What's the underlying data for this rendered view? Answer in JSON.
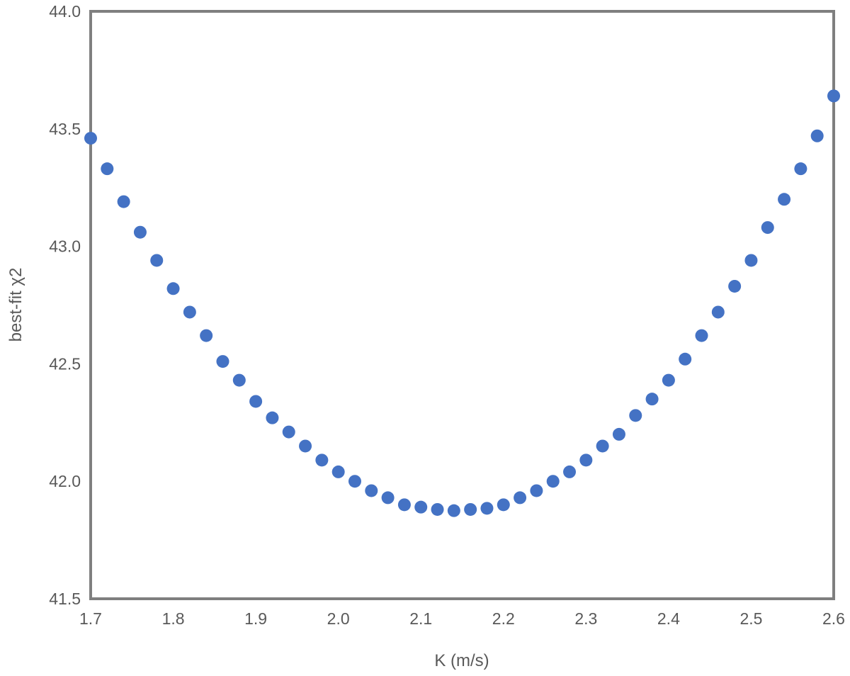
{
  "colors": {
    "marker": "#4472c4",
    "frame": "#7f7f7f",
    "text": "#595959"
  },
  "chart_data": {
    "type": "scatter",
    "title": "",
    "xlabel": "K (m/s)",
    "ylabel": "best-fit χ2",
    "xlim": [
      1.7,
      2.6
    ],
    "ylim": [
      41.5,
      44.0
    ],
    "x_ticks": [
      "1.7",
      "1.8",
      "1.9",
      "2.0",
      "2.1",
      "2.2",
      "2.3",
      "2.4",
      "2.5",
      "2.6"
    ],
    "y_ticks": [
      "41.5",
      "42.0",
      "42.5",
      "43.0",
      "43.5",
      "44.0"
    ],
    "grid": false,
    "legend": "none",
    "series": [
      {
        "x": [
          1.7,
          1.72,
          1.74,
          1.76,
          1.78,
          1.8,
          1.82,
          1.84,
          1.86,
          1.88,
          1.9,
          1.92,
          1.94,
          1.96,
          1.98,
          2.0,
          2.02,
          2.04,
          2.06,
          2.08,
          2.1,
          2.12,
          2.14,
          2.16,
          2.18,
          2.2,
          2.22,
          2.24,
          2.26,
          2.28,
          2.3,
          2.32,
          2.34,
          2.36,
          2.38,
          2.4,
          2.42,
          2.44,
          2.46,
          2.48,
          2.5,
          2.52,
          2.54,
          2.56,
          2.58,
          2.6
        ],
        "y": [
          43.46,
          43.33,
          43.19,
          43.06,
          42.94,
          42.82,
          42.72,
          42.62,
          42.51,
          42.43,
          42.34,
          42.27,
          42.21,
          42.15,
          42.09,
          42.04,
          42.0,
          41.96,
          41.93,
          41.9,
          41.89,
          41.88,
          41.875,
          41.88,
          41.885,
          41.9,
          41.93,
          41.96,
          42.0,
          42.04,
          42.09,
          42.15,
          42.2,
          42.28,
          42.35,
          42.43,
          42.52,
          42.62,
          42.72,
          42.83,
          42.94,
          43.08,
          43.2,
          43.33,
          43.47,
          43.64
        ]
      }
    ]
  }
}
